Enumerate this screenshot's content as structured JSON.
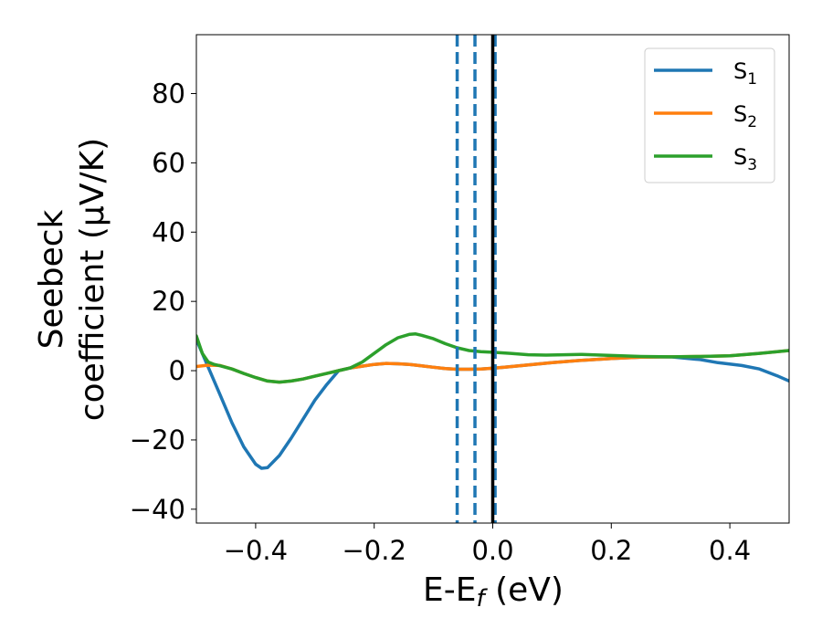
{
  "chart_data": {
    "type": "line",
    "title": "",
    "xlabel": {
      "main": "E-E",
      "sub": "f",
      "suffix": " (eV)"
    },
    "ylabel": {
      "line1": "Seebeck",
      "line2": "coefficient  (μV/K)"
    },
    "xlim": [
      -0.5,
      0.5
    ],
    "ylim": [
      -44,
      97
    ],
    "xticks": [
      -0.4,
      -0.2,
      0.0,
      0.2,
      0.4
    ],
    "xtick_labels": [
      "−0.4",
      "−0.2",
      "0.0",
      "0.2",
      "0.4"
    ],
    "yticks": [
      -40,
      -20,
      0,
      20,
      40,
      60,
      80
    ],
    "ytick_labels": [
      "−40",
      "−20",
      "0",
      "20",
      "40",
      "60",
      "80"
    ],
    "grid": false,
    "legend_position": "top-right",
    "vertical_lines": [
      {
        "x": -0.06,
        "style": "dashed",
        "color": "#1f77b4"
      },
      {
        "x": -0.03,
        "style": "dashed",
        "color": "#1f77b4"
      },
      {
        "x": 0.004,
        "style": "dashed",
        "color": "#1f77b4"
      },
      {
        "x": 0.0,
        "style": "solid",
        "color": "#000000"
      }
    ],
    "series": [
      {
        "name": "S",
        "sub": "1",
        "color": "#1f77b4",
        "x": [
          -0.5,
          -0.48,
          -0.46,
          -0.44,
          -0.42,
          -0.4,
          -0.39,
          -0.38,
          -0.36,
          -0.34,
          -0.32,
          -0.3,
          -0.28,
          -0.26,
          -0.24,
          -0.22,
          -0.2,
          -0.18,
          -0.16,
          -0.14,
          -0.12,
          -0.1,
          -0.08,
          -0.06,
          -0.04,
          -0.02,
          0.0,
          0.02,
          0.05,
          0.1,
          0.15,
          0.2,
          0.25,
          0.3,
          0.35,
          0.38,
          0.42,
          0.45,
          0.48,
          0.5
        ],
        "y": [
          9,
          1,
          -7,
          -15,
          -22,
          -27,
          -28.2,
          -28,
          -24.5,
          -19.5,
          -14,
          -8.5,
          -4,
          0,
          0.8,
          1.3,
          1.8,
          2.1,
          2.0,
          1.8,
          1.4,
          1.0,
          0.6,
          0.4,
          0.4,
          0.5,
          0.7,
          1.0,
          1.5,
          2.3,
          3.0,
          3.5,
          3.9,
          4.0,
          3.2,
          2.3,
          1.5,
          0.5,
          -1.5,
          -3
        ]
      },
      {
        "name": "S",
        "sub": "2",
        "color": "#ff7f0e",
        "x": [
          -0.5,
          -0.48,
          -0.46,
          -0.44,
          -0.42,
          -0.4,
          -0.38,
          -0.36,
          -0.34,
          -0.32,
          -0.3,
          -0.28,
          -0.26,
          -0.24,
          -0.22,
          -0.2,
          -0.18,
          -0.16,
          -0.14,
          -0.12,
          -0.1,
          -0.08,
          -0.06,
          -0.04,
          -0.02,
          0.0,
          0.02,
          0.05,
          0.1,
          0.15,
          0.2,
          0.25,
          0.3,
          0.35,
          0.4,
          0.45,
          0.5
        ],
        "y": [
          1.2,
          1.6,
          1.5,
          0.5,
          -0.8,
          -2.0,
          -3.0,
          -3.3,
          -3.0,
          -2.4,
          -1.6,
          -0.8,
          0.0,
          0.8,
          1.3,
          1.8,
          2.1,
          2.0,
          1.8,
          1.4,
          1.0,
          0.6,
          0.4,
          0.4,
          0.5,
          0.7,
          1.0,
          1.5,
          2.3,
          3.0,
          3.5,
          3.9,
          4.0,
          4.1,
          4.3,
          5.0,
          5.8
        ]
      },
      {
        "name": "S",
        "sub": "3",
        "color": "#2ca02c",
        "x": [
          -0.5,
          -0.49,
          -0.48,
          -0.47,
          -0.46,
          -0.44,
          -0.42,
          -0.4,
          -0.38,
          -0.36,
          -0.34,
          -0.32,
          -0.3,
          -0.28,
          -0.26,
          -0.24,
          -0.22,
          -0.2,
          -0.18,
          -0.16,
          -0.14,
          -0.13,
          -0.12,
          -0.1,
          -0.08,
          -0.06,
          -0.04,
          -0.02,
          0.0,
          0.03,
          0.06,
          0.09,
          0.12,
          0.15,
          0.2,
          0.25,
          0.3,
          0.35,
          0.4,
          0.45,
          0.5
        ],
        "y": [
          10,
          5,
          2.5,
          1.8,
          1.4,
          0.5,
          -0.8,
          -2.0,
          -3.0,
          -3.3,
          -3.0,
          -2.4,
          -1.6,
          -0.8,
          0.0,
          0.8,
          2.5,
          5.0,
          7.5,
          9.5,
          10.5,
          10.6,
          10.2,
          9.2,
          7.8,
          6.6,
          5.8,
          5.5,
          5.3,
          5.0,
          4.6,
          4.5,
          4.6,
          4.7,
          4.4,
          4.1,
          4.0,
          4.1,
          4.3,
          5.0,
          5.8
        ]
      }
    ]
  }
}
